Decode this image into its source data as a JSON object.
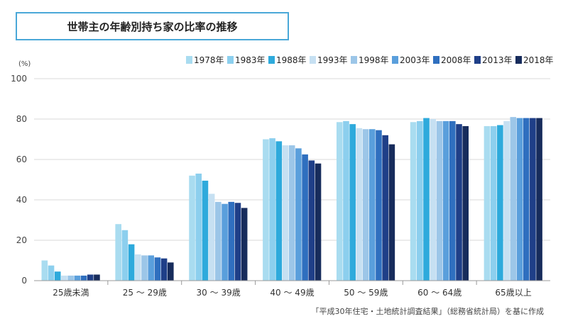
{
  "title": "世帯主の年齢別持ち家の比率の推移",
  "source": "「平成30年住宅・土地統計調査結果」（総務省統計局）を基に作成",
  "chart_data": {
    "type": "bar",
    "title": "世帯主の年齢別持ち家の比率の推移",
    "ylabel": "(%)",
    "xlabel": "",
    "ylim": [
      0,
      100
    ],
    "yticks": [
      0,
      20,
      40,
      60,
      80,
      100
    ],
    "grid": true,
    "legend_position": "top-right",
    "categories": [
      "25歳未満",
      "25 ～ 29歳",
      "30 ～ 39歳",
      "40 ～ 49歳",
      "50 ～ 59歳",
      "60 ～ 64歳",
      "65歳以上"
    ],
    "series": [
      {
        "name": "1978年",
        "color": "#a9dcf0",
        "values": [
          10,
          28,
          52,
          70,
          78.5,
          78.5,
          76.5
        ]
      },
      {
        "name": "1983年",
        "color": "#8ccfee",
        "values": [
          7.5,
          25,
          53,
          70.5,
          79,
          79,
          76.5
        ]
      },
      {
        "name": "1988年",
        "color": "#2eaadc",
        "values": [
          4.5,
          18,
          49.5,
          69,
          77.5,
          80.5,
          77
        ]
      },
      {
        "name": "1993年",
        "color": "#c6e0f2",
        "values": [
          2.5,
          13,
          43,
          67,
          75.5,
          80,
          79
        ]
      },
      {
        "name": "1998年",
        "color": "#9cc6e8",
        "values": [
          2.5,
          12.5,
          39,
          67,
          75,
          79,
          81
        ]
      },
      {
        "name": "2003年",
        "color": "#5a9fdc",
        "values": [
          2.5,
          12.5,
          38,
          65.5,
          75,
          79,
          80.5
        ]
      },
      {
        "name": "2008年",
        "color": "#2f6fbf",
        "values": [
          2.5,
          11.5,
          39,
          62.5,
          74.5,
          79,
          80.5
        ]
      },
      {
        "name": "2013年",
        "color": "#1f3f88",
        "values": [
          3,
          11,
          38.5,
          59.5,
          72,
          77.5,
          80.5
        ]
      },
      {
        "name": "2018年",
        "color": "#172c5c",
        "values": [
          3,
          9,
          36,
          58,
          67.5,
          76.5,
          80.5
        ]
      }
    ]
  }
}
